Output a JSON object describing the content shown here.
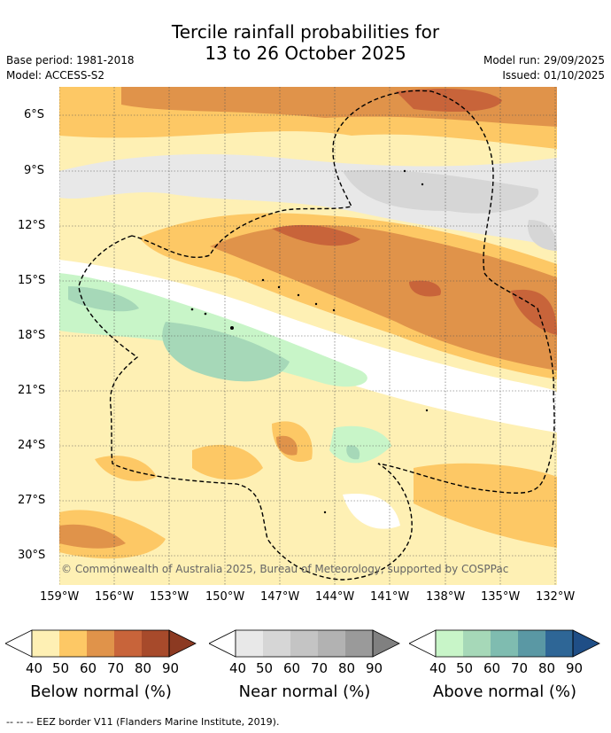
{
  "title": {
    "line1": "Tercile rainfall probabilities for",
    "line2": "13 to 26 October 2025"
  },
  "meta": {
    "base_period": "Base period: 1981-2018",
    "model": "Model: ACCESS-S2",
    "model_run": "Model run: 29/09/2025",
    "issued": "Issued: 01/10/2025"
  },
  "map": {
    "lat_ticks": [
      "6°S",
      "9°S",
      "12°S",
      "15°S",
      "18°S",
      "21°S",
      "24°S",
      "27°S",
      "30°S"
    ],
    "lon_ticks": [
      "159°W",
      "156°W",
      "153°W",
      "150°W",
      "147°W",
      "144°W",
      "141°W",
      "138°W",
      "135°W",
      "132°W"
    ],
    "copyright": "© Commonwealth of Australia 2025, Bureau of Meteorology, supported by COSPPac"
  },
  "colorbars": [
    {
      "label": "Below normal (%)",
      "ticks": [
        "40",
        "50",
        "60",
        "70",
        "80",
        "90"
      ],
      "colors": [
        "#fef0b4",
        "#fdc865",
        "#e0934a",
        "#c8643a",
        "#a74a2b"
      ]
    },
    {
      "label": "Near normal (%)",
      "ticks": [
        "40",
        "50",
        "60",
        "70",
        "80",
        "90"
      ],
      "colors": [
        "#e8e8e8",
        "#d6d6d6",
        "#c4c4c4",
        "#b2b2b2",
        "#9a9a9a"
      ]
    },
    {
      "label": "Above normal (%)",
      "ticks": [
        "40",
        "50",
        "60",
        "70",
        "80",
        "90"
      ],
      "colors": [
        "#c8f5c8",
        "#a6d8b8",
        "#7fbcb0",
        "#5a98a4",
        "#2e6696"
      ]
    }
  ],
  "footer": "-- -- -- EEZ border V11 (Flanders Marine Institute, 2019)."
}
